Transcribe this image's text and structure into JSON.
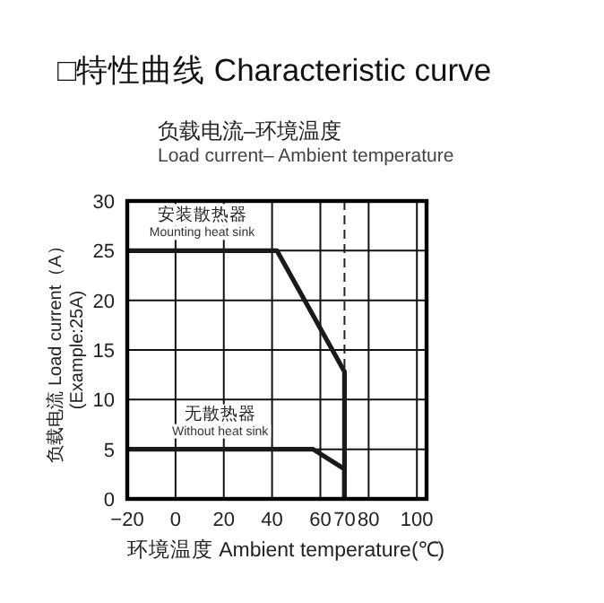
{
  "chart_data": {
    "type": "line",
    "title": "□特性曲线 Characteristic curve",
    "subtitle": "负载电流–环境温度\nLoad current– Ambient temperature",
    "xlabel": "环境温度 Ambient temperature(℃)",
    "ylabel": "负载电流 Load current（A）\n(Example:25A)",
    "xlim": [
      -20,
      104
    ],
    "xticks": [
      -20,
      0,
      20,
      40,
      60,
      70,
      80,
      100
    ],
    "ylim": [
      0,
      30
    ],
    "yticks": [
      0,
      5,
      10,
      15,
      20,
      25,
      30
    ],
    "grid": true,
    "line_style": "solid",
    "marker": "none",
    "ref_lines": [
      {
        "axis": "x",
        "value": 70,
        "line_style": "dashed",
        "color": "#222222"
      }
    ],
    "series": [
      {
        "name": "安装散热器\nMounting heat sink",
        "color": "#1a1a1a",
        "x": [
          -20,
          42,
          70,
          70
        ],
        "values": [
          25,
          25,
          12.8,
          0
        ]
      },
      {
        "name": "无散热器\nWithout heat sink",
        "color": "#1a1a1a",
        "x": [
          -20,
          57,
          70,
          70
        ],
        "values": [
          5,
          5,
          3,
          0
        ]
      }
    ]
  }
}
